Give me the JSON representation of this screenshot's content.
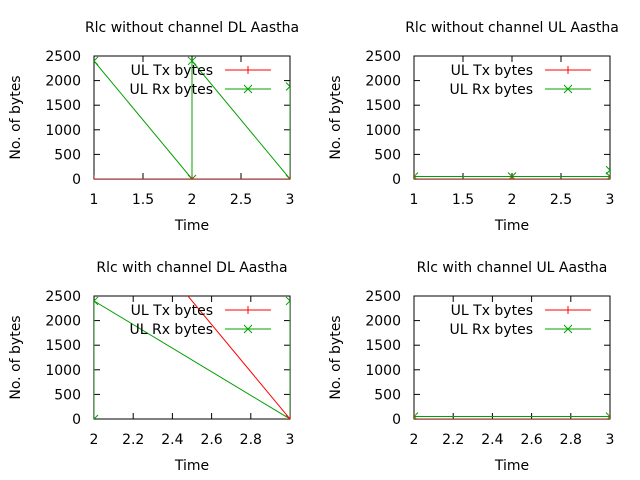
{
  "chart_data": [
    {
      "type": "line",
      "title": "Rlc without channel DL Aastha",
      "xlabel": "Time",
      "ylabel": "No. of bytes",
      "xlim": [
        1,
        3
      ],
      "ylim": [
        0,
        2500
      ],
      "xticks": [
        "1",
        "1.5",
        "2",
        "2.5",
        "3"
      ],
      "yticks": [
        "0",
        "500",
        "1000",
        "1500",
        "2000",
        "2500"
      ],
      "grid": false,
      "legend_position": "top-right",
      "series": [
        {
          "name": "UL Tx bytes",
          "color": "#ff0000",
          "marker": "plus",
          "points": [
            [
              1,
              0
            ],
            [
              2,
              0
            ],
            [
              3,
              0
            ]
          ]
        },
        {
          "name": "UL Rx bytes",
          "color": "#00a000",
          "marker": "x",
          "points": [
            [
              1,
              2400
            ],
            [
              2,
              0
            ],
            [
              2,
              2400
            ],
            [
              3,
              0
            ],
            [
              3,
              1880
            ]
          ]
        }
      ]
    },
    {
      "type": "line",
      "title": "Rlc without channel UL Aastha",
      "xlabel": "Time",
      "ylabel": "No. of bytes",
      "xlim": [
        1,
        3
      ],
      "ylim": [
        0,
        2500
      ],
      "xticks": [
        "1",
        "1.5",
        "2",
        "2.5",
        "3"
      ],
      "yticks": [
        "0",
        "500",
        "1000",
        "1500",
        "2000",
        "2500"
      ],
      "grid": false,
      "legend_position": "top-right",
      "series": [
        {
          "name": "UL Tx bytes",
          "color": "#ff0000",
          "marker": "plus",
          "points": [
            [
              1,
              0
            ],
            [
              2,
              0
            ],
            [
              3,
              0
            ]
          ]
        },
        {
          "name": "UL Rx bytes",
          "color": "#00a000",
          "marker": "x",
          "points": [
            [
              1,
              50
            ],
            [
              2,
              50
            ],
            [
              3,
              50
            ],
            [
              3,
              180
            ]
          ]
        }
      ]
    },
    {
      "type": "line",
      "title": "Rlc with channel DL Aastha",
      "xlabel": "Time",
      "ylabel": "No. of bytes",
      "xlim": [
        2,
        3
      ],
      "ylim": [
        0,
        2500
      ],
      "xticks": [
        "2",
        "2.2",
        "2.4",
        "2.6",
        "2.8",
        "3"
      ],
      "yticks": [
        "0",
        "500",
        "1000",
        "1500",
        "2000",
        "2500"
      ],
      "grid": false,
      "legend_position": "top-right",
      "series": [
        {
          "name": "UL Tx bytes",
          "color": "#ff0000",
          "marker": "plus",
          "points": [
            [
              2,
              4800
            ],
            [
              3,
              0
            ]
          ]
        },
        {
          "name": "UL Rx bytes",
          "color": "#00a000",
          "marker": "x",
          "points": [
            [
              2,
              0
            ],
            [
              2,
              2400
            ],
            [
              3,
              0
            ],
            [
              3,
              2400
            ]
          ]
        }
      ]
    },
    {
      "type": "line",
      "title": "Rlc with channel UL Aastha",
      "xlabel": "Time",
      "ylabel": "No. of bytes",
      "xlim": [
        2,
        3
      ],
      "ylim": [
        0,
        2500
      ],
      "xticks": [
        "2",
        "2.2",
        "2.4",
        "2.6",
        "2.8",
        "3"
      ],
      "yticks": [
        "0",
        "500",
        "1000",
        "1500",
        "2000",
        "2500"
      ],
      "grid": false,
      "legend_position": "top-right",
      "series": [
        {
          "name": "UL Tx bytes",
          "color": "#ff0000",
          "marker": "plus",
          "points": [
            [
              2,
              0
            ],
            [
              3,
              0
            ]
          ]
        },
        {
          "name": "UL Rx bytes",
          "color": "#00a000",
          "marker": "x",
          "points": [
            [
              2,
              50
            ],
            [
              3,
              50
            ]
          ]
        }
      ]
    }
  ]
}
